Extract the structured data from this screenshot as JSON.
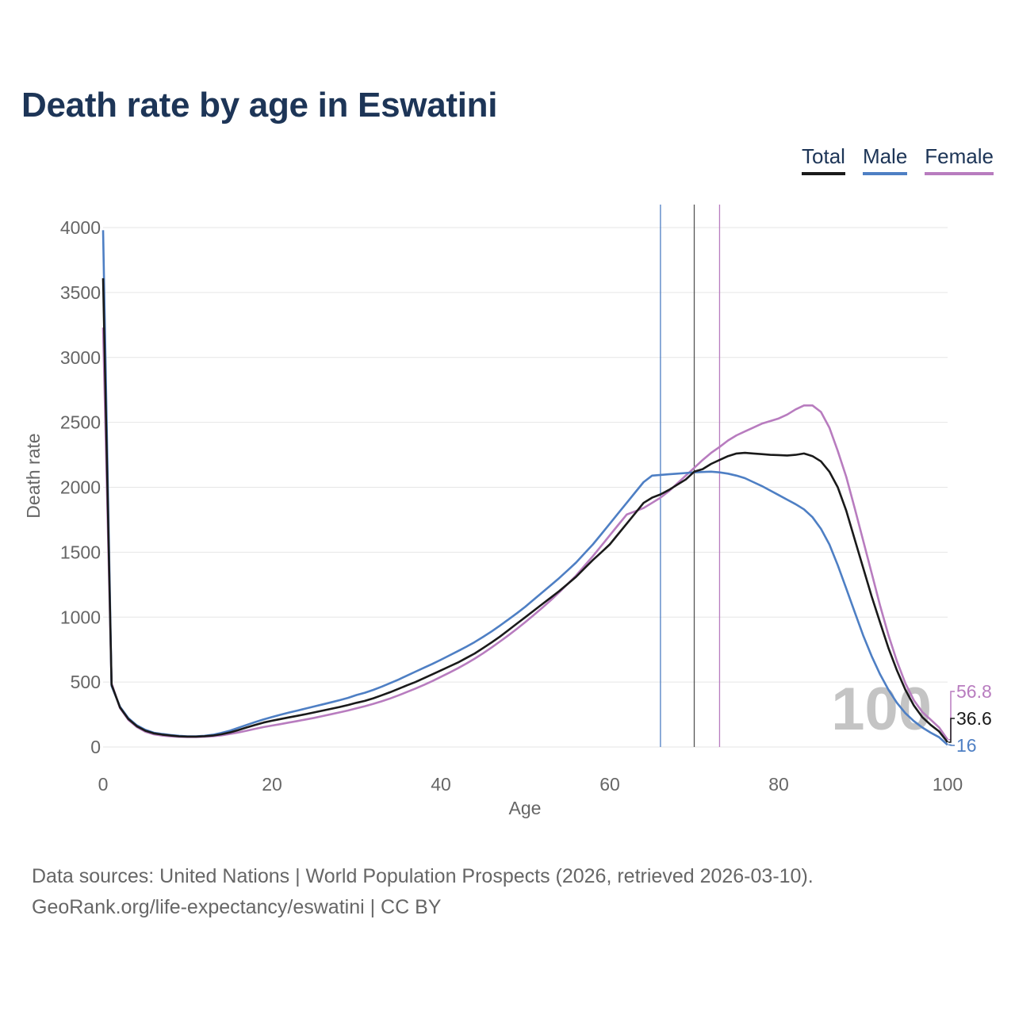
{
  "title": "Death rate by age in Eswatini",
  "legend": {
    "total": "Total",
    "male": "Male",
    "female": "Female"
  },
  "colors": {
    "total": "#1a1a1a",
    "male": "#4e7fc4",
    "female": "#b87cbf",
    "grid": "#e6e6e6",
    "axis_text": "#666666",
    "watermark": "#c4c4c4"
  },
  "footer": {
    "line1": "Data sources: United Nations | World Population Prospects (2026, retrieved 2026-03-10).",
    "line2": "GeoRank.org/life-expectancy/eswatini | CC BY"
  },
  "chart_data": {
    "type": "line",
    "xlabel": "Age",
    "ylabel": "Death rate",
    "xlim": [
      0,
      100
    ],
    "ylim": [
      0,
      4000
    ],
    "xticks": [
      0,
      20,
      40,
      60,
      80,
      100
    ],
    "yticks": [
      0,
      500,
      1000,
      1500,
      2000,
      2500,
      3000,
      3500,
      4000
    ],
    "watermark": "100",
    "life_expectancy_markers": {
      "male": 66,
      "total": 70,
      "female": 73
    },
    "end_labels": {
      "female": "56.8",
      "total": "36.6",
      "male": "16"
    },
    "x": [
      0,
      1,
      2,
      3,
      4,
      5,
      6,
      7,
      8,
      9,
      10,
      11,
      12,
      13,
      14,
      15,
      16,
      17,
      18,
      19,
      20,
      21,
      22,
      23,
      24,
      25,
      26,
      27,
      28,
      29,
      30,
      31,
      32,
      33,
      34,
      35,
      36,
      37,
      38,
      39,
      40,
      41,
      42,
      43,
      44,
      45,
      46,
      47,
      48,
      49,
      50,
      51,
      52,
      53,
      54,
      55,
      56,
      57,
      58,
      59,
      60,
      61,
      62,
      63,
      64,
      65,
      66,
      67,
      68,
      69,
      70,
      71,
      72,
      73,
      74,
      75,
      76,
      77,
      78,
      79,
      80,
      81,
      82,
      83,
      84,
      85,
      86,
      87,
      88,
      89,
      90,
      91,
      92,
      93,
      94,
      95,
      96,
      97,
      98,
      99,
      100
    ],
    "series": [
      {
        "name": "Total",
        "values": [
          3610,
          480,
          305,
          215,
          160,
          125,
          105,
          95,
          88,
          82,
          80,
          80,
          83,
          88,
          98,
          112,
          130,
          150,
          170,
          188,
          202,
          215,
          228,
          240,
          253,
          266,
          280,
          294,
          308,
          323,
          340,
          355,
          375,
          398,
          422,
          448,
          475,
          500,
          530,
          560,
          590,
          620,
          650,
          685,
          720,
          762,
          805,
          850,
          900,
          950,
          1000,
          1050,
          1100,
          1150,
          1200,
          1255,
          1310,
          1375,
          1440,
          1500,
          1560,
          1640,
          1720,
          1800,
          1880,
          1920,
          1945,
          1980,
          2020,
          2060,
          2120,
          2140,
          2180,
          2210,
          2240,
          2260,
          2265,
          2260,
          2255,
          2250,
          2248,
          2245,
          2250,
          2260,
          2240,
          2200,
          2120,
          2000,
          1820,
          1600,
          1380,
          1160,
          960,
          760,
          590,
          440,
          320,
          230,
          170,
          120,
          36.6
        ]
      },
      {
        "name": "Male",
        "values": [
          3980,
          470,
          310,
          222,
          167,
          132,
          110,
          100,
          92,
          86,
          82,
          82,
          86,
          94,
          108,
          125,
          148,
          170,
          192,
          212,
          230,
          248,
          265,
          280,
          296,
          312,
          328,
          344,
          360,
          378,
          400,
          418,
          440,
          465,
          492,
          520,
          550,
          580,
          610,
          640,
          672,
          705,
          738,
          772,
          808,
          848,
          890,
          935,
          982,
          1030,
          1080,
          1135,
          1190,
          1245,
          1300,
          1360,
          1420,
          1490,
          1560,
          1640,
          1720,
          1800,
          1880,
          1960,
          2040,
          2090,
          2095,
          2100,
          2105,
          2110,
          2115,
          2118,
          2120,
          2115,
          2105,
          2090,
          2070,
          2040,
          2010,
          1975,
          1940,
          1905,
          1870,
          1830,
          1770,
          1680,
          1560,
          1400,
          1220,
          1040,
          860,
          700,
          560,
          440,
          340,
          260,
          200,
          150,
          110,
          75,
          16
        ]
      },
      {
        "name": "Female",
        "values": [
          3230,
          490,
          300,
          208,
          153,
          118,
          98,
          88,
          82,
          78,
          77,
          77,
          79,
          83,
          90,
          100,
          112,
          125,
          140,
          153,
          165,
          176,
          188,
          200,
          212,
          224,
          238,
          252,
          266,
          281,
          298,
          314,
          332,
          352,
          374,
          398,
          424,
          450,
          478,
          508,
          540,
          572,
          606,
          642,
          680,
          722,
          766,
          812,
          860,
          910,
          962,
          1016,
          1072,
          1130,
          1190,
          1255,
          1320,
          1395,
          1470,
          1550,
          1630,
          1710,
          1790,
          1815,
          1840,
          1880,
          1920,
          1970,
          2030,
          2090,
          2150,
          2210,
          2265,
          2310,
          2360,
          2400,
          2430,
          2460,
          2490,
          2510,
          2530,
          2560,
          2600,
          2630,
          2630,
          2580,
          2460,
          2280,
          2080,
          1840,
          1590,
          1340,
          1090,
          860,
          660,
          490,
          360,
          270,
          210,
          150,
          56.8
        ]
      }
    ]
  }
}
